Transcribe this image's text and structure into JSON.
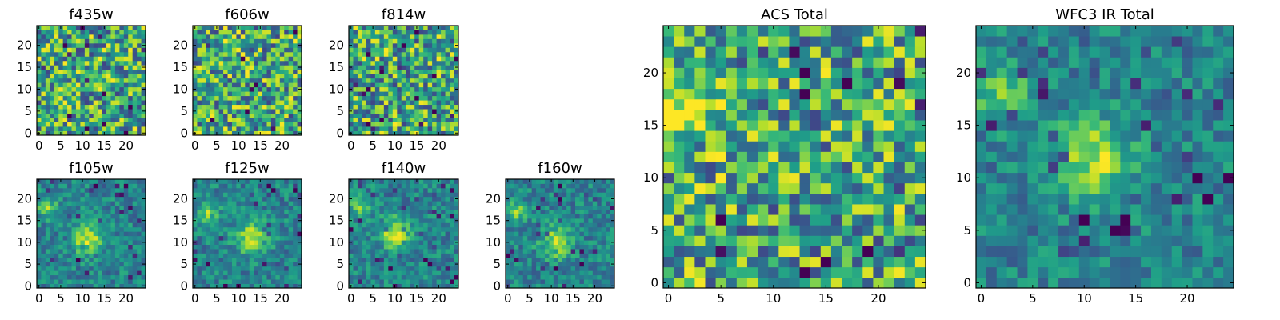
{
  "chart_data": [
    {
      "type": "heatmap",
      "title": "f435w",
      "grid_size": 25,
      "xlim": [
        0,
        24
      ],
      "ylim": [
        0,
        24
      ],
      "xticks": [
        0,
        5,
        10,
        15,
        20
      ],
      "yticks": [
        0,
        5,
        10,
        15,
        20
      ],
      "colormap": "viridis",
      "pattern": "noise"
    },
    {
      "type": "heatmap",
      "title": "f606w",
      "grid_size": 25,
      "xlim": [
        0,
        24
      ],
      "ylim": [
        0,
        24
      ],
      "xticks": [
        0,
        5,
        10,
        15,
        20
      ],
      "yticks": [
        0,
        5,
        10,
        15,
        20
      ],
      "colormap": "viridis",
      "pattern": "noise"
    },
    {
      "type": "heatmap",
      "title": "f814w",
      "grid_size": 25,
      "xlim": [
        0,
        24
      ],
      "ylim": [
        0,
        24
      ],
      "xticks": [
        0,
        5,
        10,
        15,
        20
      ],
      "yticks": [
        0,
        5,
        10,
        15,
        20
      ],
      "colormap": "viridis",
      "pattern": "noise"
    },
    {
      "type": "heatmap",
      "title": "f105w",
      "grid_size": 25,
      "xlim": [
        0,
        24
      ],
      "ylim": [
        0,
        24
      ],
      "xticks": [
        0,
        5,
        10,
        15,
        20
      ],
      "yticks": [
        0,
        5,
        10,
        15,
        20
      ],
      "colormap": "viridis",
      "pattern": "source",
      "bright_regions": [
        [
          11,
          11
        ],
        [
          2,
          18
        ]
      ]
    },
    {
      "type": "heatmap",
      "title": "f125w",
      "grid_size": 25,
      "xlim": [
        0,
        24
      ],
      "ylim": [
        0,
        24
      ],
      "xticks": [
        0,
        5,
        10,
        15,
        20
      ],
      "yticks": [
        0,
        5,
        10,
        15,
        20
      ],
      "colormap": "viridis",
      "pattern": "source",
      "bright_regions": [
        [
          13,
          11
        ],
        [
          3,
          17
        ]
      ]
    },
    {
      "type": "heatmap",
      "title": "f140w",
      "grid_size": 25,
      "xlim": [
        0,
        24
      ],
      "ylim": [
        0,
        24
      ],
      "xticks": [
        0,
        5,
        10,
        15,
        20
      ],
      "yticks": [
        0,
        5,
        10,
        15,
        20
      ],
      "colormap": "viridis",
      "pattern": "source",
      "bright_regions": [
        [
          10,
          12
        ],
        [
          2,
          18
        ]
      ]
    },
    {
      "type": "heatmap",
      "title": "f160w",
      "grid_size": 25,
      "xlim": [
        0,
        24
      ],
      "ylim": [
        0,
        24
      ],
      "xticks": [
        0,
        5,
        10,
        15,
        20
      ],
      "yticks": [
        0,
        5,
        10,
        15,
        20
      ],
      "colormap": "viridis",
      "pattern": "source",
      "bright_regions": [
        [
          11,
          10
        ],
        [
          2,
          17
        ]
      ]
    },
    {
      "type": "heatmap",
      "title": "ACS Total",
      "grid_size": 25,
      "xlim": [
        0,
        24
      ],
      "ylim": [
        0,
        24
      ],
      "xticks": [
        0,
        5,
        10,
        15,
        20
      ],
      "yticks": [
        0,
        5,
        10,
        15,
        20
      ],
      "colormap": "viridis",
      "pattern": "noise",
      "bright_regions": [
        [
          2,
          16
        ]
      ]
    },
    {
      "type": "heatmap",
      "title": "WFC3 IR Total",
      "grid_size": 25,
      "xlim": [
        0,
        24
      ],
      "ylim": [
        0,
        24
      ],
      "xticks": [
        0,
        5,
        10,
        15,
        20
      ],
      "yticks": [
        0,
        5,
        10,
        15,
        20
      ],
      "colormap": "viridis",
      "pattern": "source",
      "bright_regions": [
        [
          11,
          12
        ],
        [
          2,
          18
        ]
      ]
    }
  ]
}
